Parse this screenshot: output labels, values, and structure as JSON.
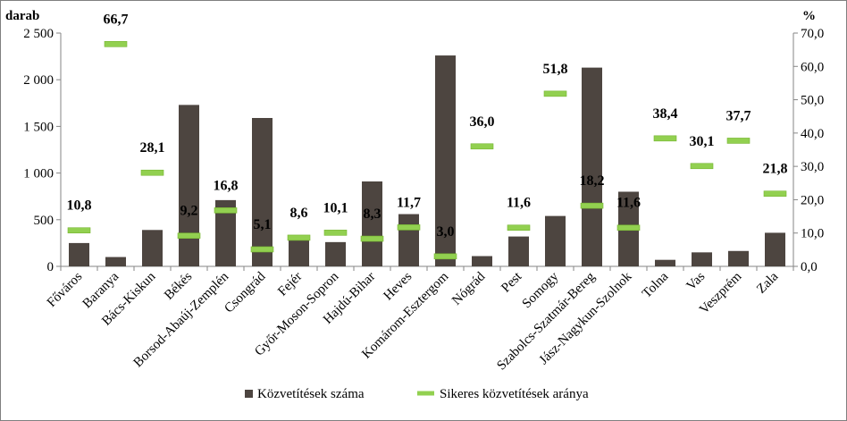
{
  "chart_data": {
    "type": "bar",
    "categories": [
      "Főváros",
      "Baranya",
      "Bács-Kiskun",
      "Békés",
      "Borsod-Abaúj-Zemplén",
      "Csongrád",
      "Fejér",
      "Győr-Moson-Sopron",
      "Hajdú-Bihar",
      "Heves",
      "Komárom-Esztergom",
      "Nógrád",
      "Pest",
      "Somogy",
      "Szabolcs-Szatmár-Bereg",
      "Jász-Nagykun-Szolnok",
      "Tolna",
      "Vas",
      "Veszprém",
      "Zala"
    ],
    "series": [
      {
        "name": "Közvetítések száma",
        "axis": "left",
        "type": "bar",
        "color": "#4d4540",
        "values": [
          250,
          100,
          390,
          1730,
          710,
          1590,
          290,
          260,
          910,
          560,
          2260,
          110,
          320,
          540,
          2130,
          800,
          70,
          150,
          165,
          360
        ]
      },
      {
        "name": "Sikeres közvetítések aránya",
        "axis": "right",
        "type": "marker",
        "color": "#92d050",
        "values": [
          10.8,
          66.7,
          28.1,
          9.2,
          16.8,
          5.1,
          8.6,
          10.1,
          8.3,
          11.7,
          3.0,
          36.0,
          11.6,
          51.8,
          18.2,
          11.6,
          38.4,
          30.1,
          37.7,
          21.8
        ],
        "labels": [
          "10,8",
          "66,7",
          "28,1",
          "9,2",
          "16,8",
          "5,1",
          "8,6",
          "10,1",
          "8,3",
          "11,7",
          "3,0",
          "36,0",
          "11,6",
          "51,8",
          "18,2",
          "11,6",
          "38,4",
          "30,1",
          "37,7",
          "21,8"
        ]
      }
    ],
    "y_left": {
      "unit": "darab",
      "range": [
        0,
        2500
      ],
      "ticks": [
        0,
        500,
        1000,
        1500,
        2000,
        2500
      ],
      "tick_labels": [
        "0",
        "500",
        "1 000",
        "1 500",
        "2 000",
        "2 500"
      ]
    },
    "y_right": {
      "unit": "%",
      "range": [
        0,
        70
      ],
      "ticks": [
        0,
        10,
        20,
        30,
        40,
        50,
        60,
        70
      ],
      "tick_labels": [
        "0,0",
        "10,0",
        "20,0",
        "30,0",
        "40,0",
        "50,0",
        "60,0",
        "70,0"
      ]
    },
    "grid": false,
    "legend_position": "bottom"
  }
}
